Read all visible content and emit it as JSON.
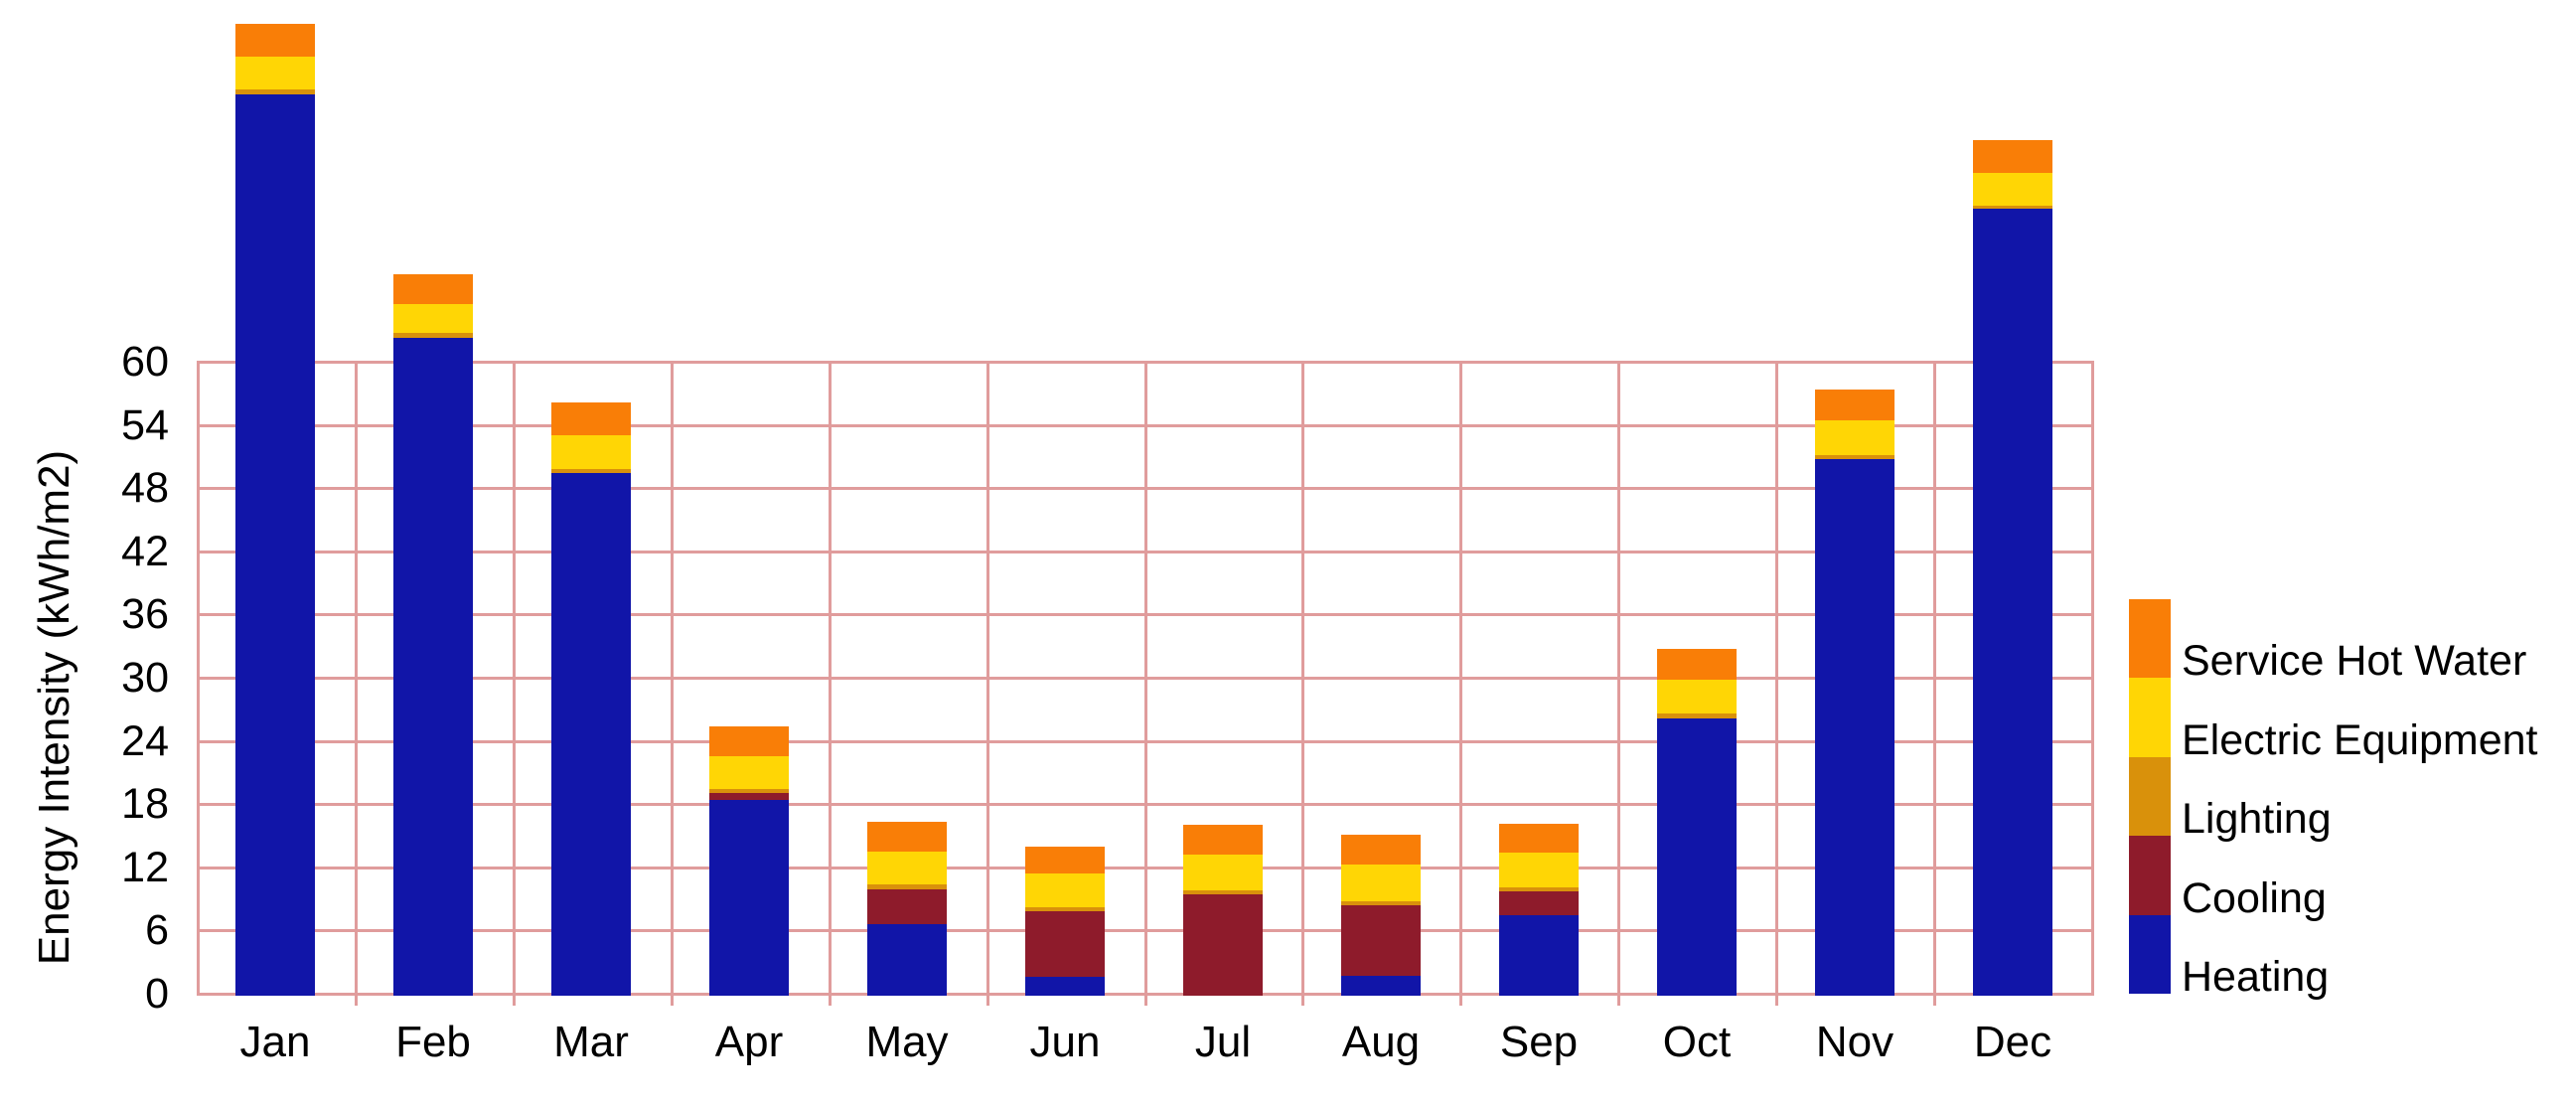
{
  "chart_data": {
    "type": "bar",
    "stacked": true,
    "title": "",
    "xlabel": "",
    "ylabel": "Energy Intensity (kWh/m2)",
    "categories": [
      "Jan",
      "Feb",
      "Mar",
      "Apr",
      "May",
      "Jun",
      "Jul",
      "Aug",
      "Sep",
      "Oct",
      "Nov",
      "Dec"
    ],
    "yticks": [
      0,
      6,
      12,
      18,
      24,
      30,
      36,
      42,
      48,
      54,
      60
    ],
    "ylim": [
      0,
      60
    ],
    "grid": true,
    "bars_overflow_above_ymax": true,
    "legend_position": "right-of-plot",
    "legend_top_to_bottom": [
      "Service Hot Water",
      "Electric Equipment",
      "Lighting",
      "Cooling",
      "Heating"
    ],
    "series": [
      {
        "name": "Heating",
        "color": "#1115A8",
        "values": [
          85.3,
          62.2,
          49.3,
          18.3,
          6.5,
          1.5,
          0,
          1.6,
          7.4,
          26.0,
          50.7,
          74.4
        ]
      },
      {
        "name": "Cooling",
        "color": "#8E1B2B",
        "values": [
          0,
          0,
          0,
          0.7,
          3.3,
          6.2,
          9.3,
          6.7,
          2.2,
          0,
          0,
          0
        ]
      },
      {
        "name": "Lighting",
        "color": "#D9910B",
        "values": [
          0.5,
          0.4,
          0.4,
          0.3,
          0.5,
          0.4,
          0.4,
          0.4,
          0.4,
          0.5,
          0.3,
          0.3
        ]
      },
      {
        "name": "Electric Equipment",
        "color": "#FFD605",
        "values": [
          3.1,
          2.8,
          3.2,
          3.2,
          3.1,
          3.2,
          3.4,
          3.5,
          3.3,
          3.2,
          3.3,
          3.1
        ]
      },
      {
        "name": "Service Hot Water",
        "color": "#F97E07",
        "values": [
          3.1,
          2.8,
          3.1,
          2.8,
          2.8,
          2.6,
          2.8,
          2.8,
          2.7,
          2.9,
          3.0,
          3.1
        ]
      }
    ],
    "totals": [
      92.0,
      68.2,
      56.0,
      25.3,
      16.2,
      13.9,
      15.9,
      15.0,
      16.0,
      32.6,
      57.3,
      80.9
    ],
    "colors": {
      "grid": "#E09C9C",
      "text": "#000000",
      "background": "#FFFFFF"
    }
  }
}
